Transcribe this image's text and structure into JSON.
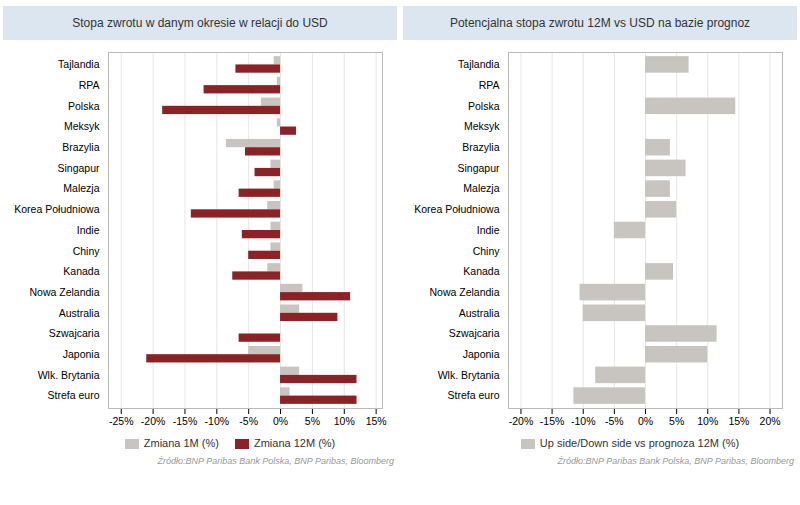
{
  "chart_data": [
    {
      "type": "bar",
      "orientation": "horizontal",
      "title": "Stopa zwrotu w danym okresie w relacji do USD",
      "categories": [
        "Strefa euro",
        "Wlk. Brytania",
        "Japonia",
        "Szwajcaria",
        "Australia",
        "Nowa Zelandia",
        "Kanada",
        "Chiny",
        "Indie",
        "Korea Południowa",
        "Malezja",
        "Singapur",
        "Brazylia",
        "Meksyk",
        "Polska",
        "RPA",
        "Tajlandia"
      ],
      "series": [
        {
          "name": "Zmiana 1M (%)",
          "color": "#c8c5c0",
          "values": [
            1.5,
            3.0,
            -5.0,
            0.0,
            3.0,
            3.5,
            -2.0,
            -1.5,
            -1.5,
            -2.0,
            -1.0,
            -1.5,
            -8.5,
            -0.5,
            -3.0,
            -0.5,
            -1.0
          ]
        },
        {
          "name": "Zmiana 12M (%)",
          "color": "#8b2326",
          "values": [
            12.0,
            12.0,
            -21.0,
            -6.5,
            9.0,
            11.0,
            -7.5,
            -5.0,
            -6.0,
            -14.0,
            -6.5,
            -4.0,
            -5.5,
            2.5,
            -18.5,
            -12.0,
            -7.0
          ]
        }
      ],
      "xlim": [
        -27,
        16
      ],
      "xticks": [
        {
          "value": -25,
          "label": "-25%"
        },
        {
          "value": -20,
          "label": "-20%"
        },
        {
          "value": -15,
          "label": "-15%"
        },
        {
          "value": -10,
          "label": "-10%"
        },
        {
          "value": -5,
          "label": "-5%"
        },
        {
          "value": 0,
          "label": "0%"
        },
        {
          "value": 5,
          "label": "5%"
        },
        {
          "value": 10,
          "label": "10%"
        },
        {
          "value": 15,
          "label": "15%"
        }
      ],
      "grid": true,
      "legend": "bottom",
      "annotations": [
        {
          "text": "Źródło:BNP Paribas Bank Polska, BNP Paribas, Bloomberg"
        }
      ]
    },
    {
      "type": "bar",
      "orientation": "horizontal",
      "title": "Potencjalna stopa zwrotu 12M vs USD na bazie prognoz",
      "categories": [
        "Strefa euro",
        "Wlk. Brytania",
        "Japonia",
        "Szwajcaria",
        "Australia",
        "Nowa Zelandia",
        "Kanada",
        "Chiny",
        "Indie",
        "Korea Południowa",
        "Malezja",
        "Singapur",
        "Brazylia",
        "Meksyk",
        "Polska",
        "RPA",
        "Tajlandia"
      ],
      "series": [
        {
          "name": "Up side/Down side vs prognoza 12M (%)",
          "color": "#c8c5c0",
          "values": [
            -11.5,
            -8.0,
            10.0,
            11.5,
            -10.0,
            -10.5,
            4.5,
            0.0,
            -5.0,
            5.0,
            4.0,
            6.5,
            4.0,
            0.0,
            14.5,
            0.0,
            7.0
          ]
        }
      ],
      "xlim": [
        -22,
        22
      ],
      "xticks": [
        {
          "value": -20,
          "label": "-20%"
        },
        {
          "value": -15,
          "label": "-15%"
        },
        {
          "value": -10,
          "label": "-10%"
        },
        {
          "value": -5,
          "label": "-5%"
        },
        {
          "value": 0,
          "label": "0%"
        },
        {
          "value": 5,
          "label": "5%"
        },
        {
          "value": 10,
          "label": "10%"
        },
        {
          "value": 15,
          "label": "15%"
        },
        {
          "value": 20,
          "label": "20%"
        }
      ],
      "grid": true,
      "legend": "bottom",
      "annotations": [
        {
          "text": "Źródło:BNP Paribas Bank Polska, BNP Paribas, Bloomberg"
        }
      ]
    }
  ]
}
